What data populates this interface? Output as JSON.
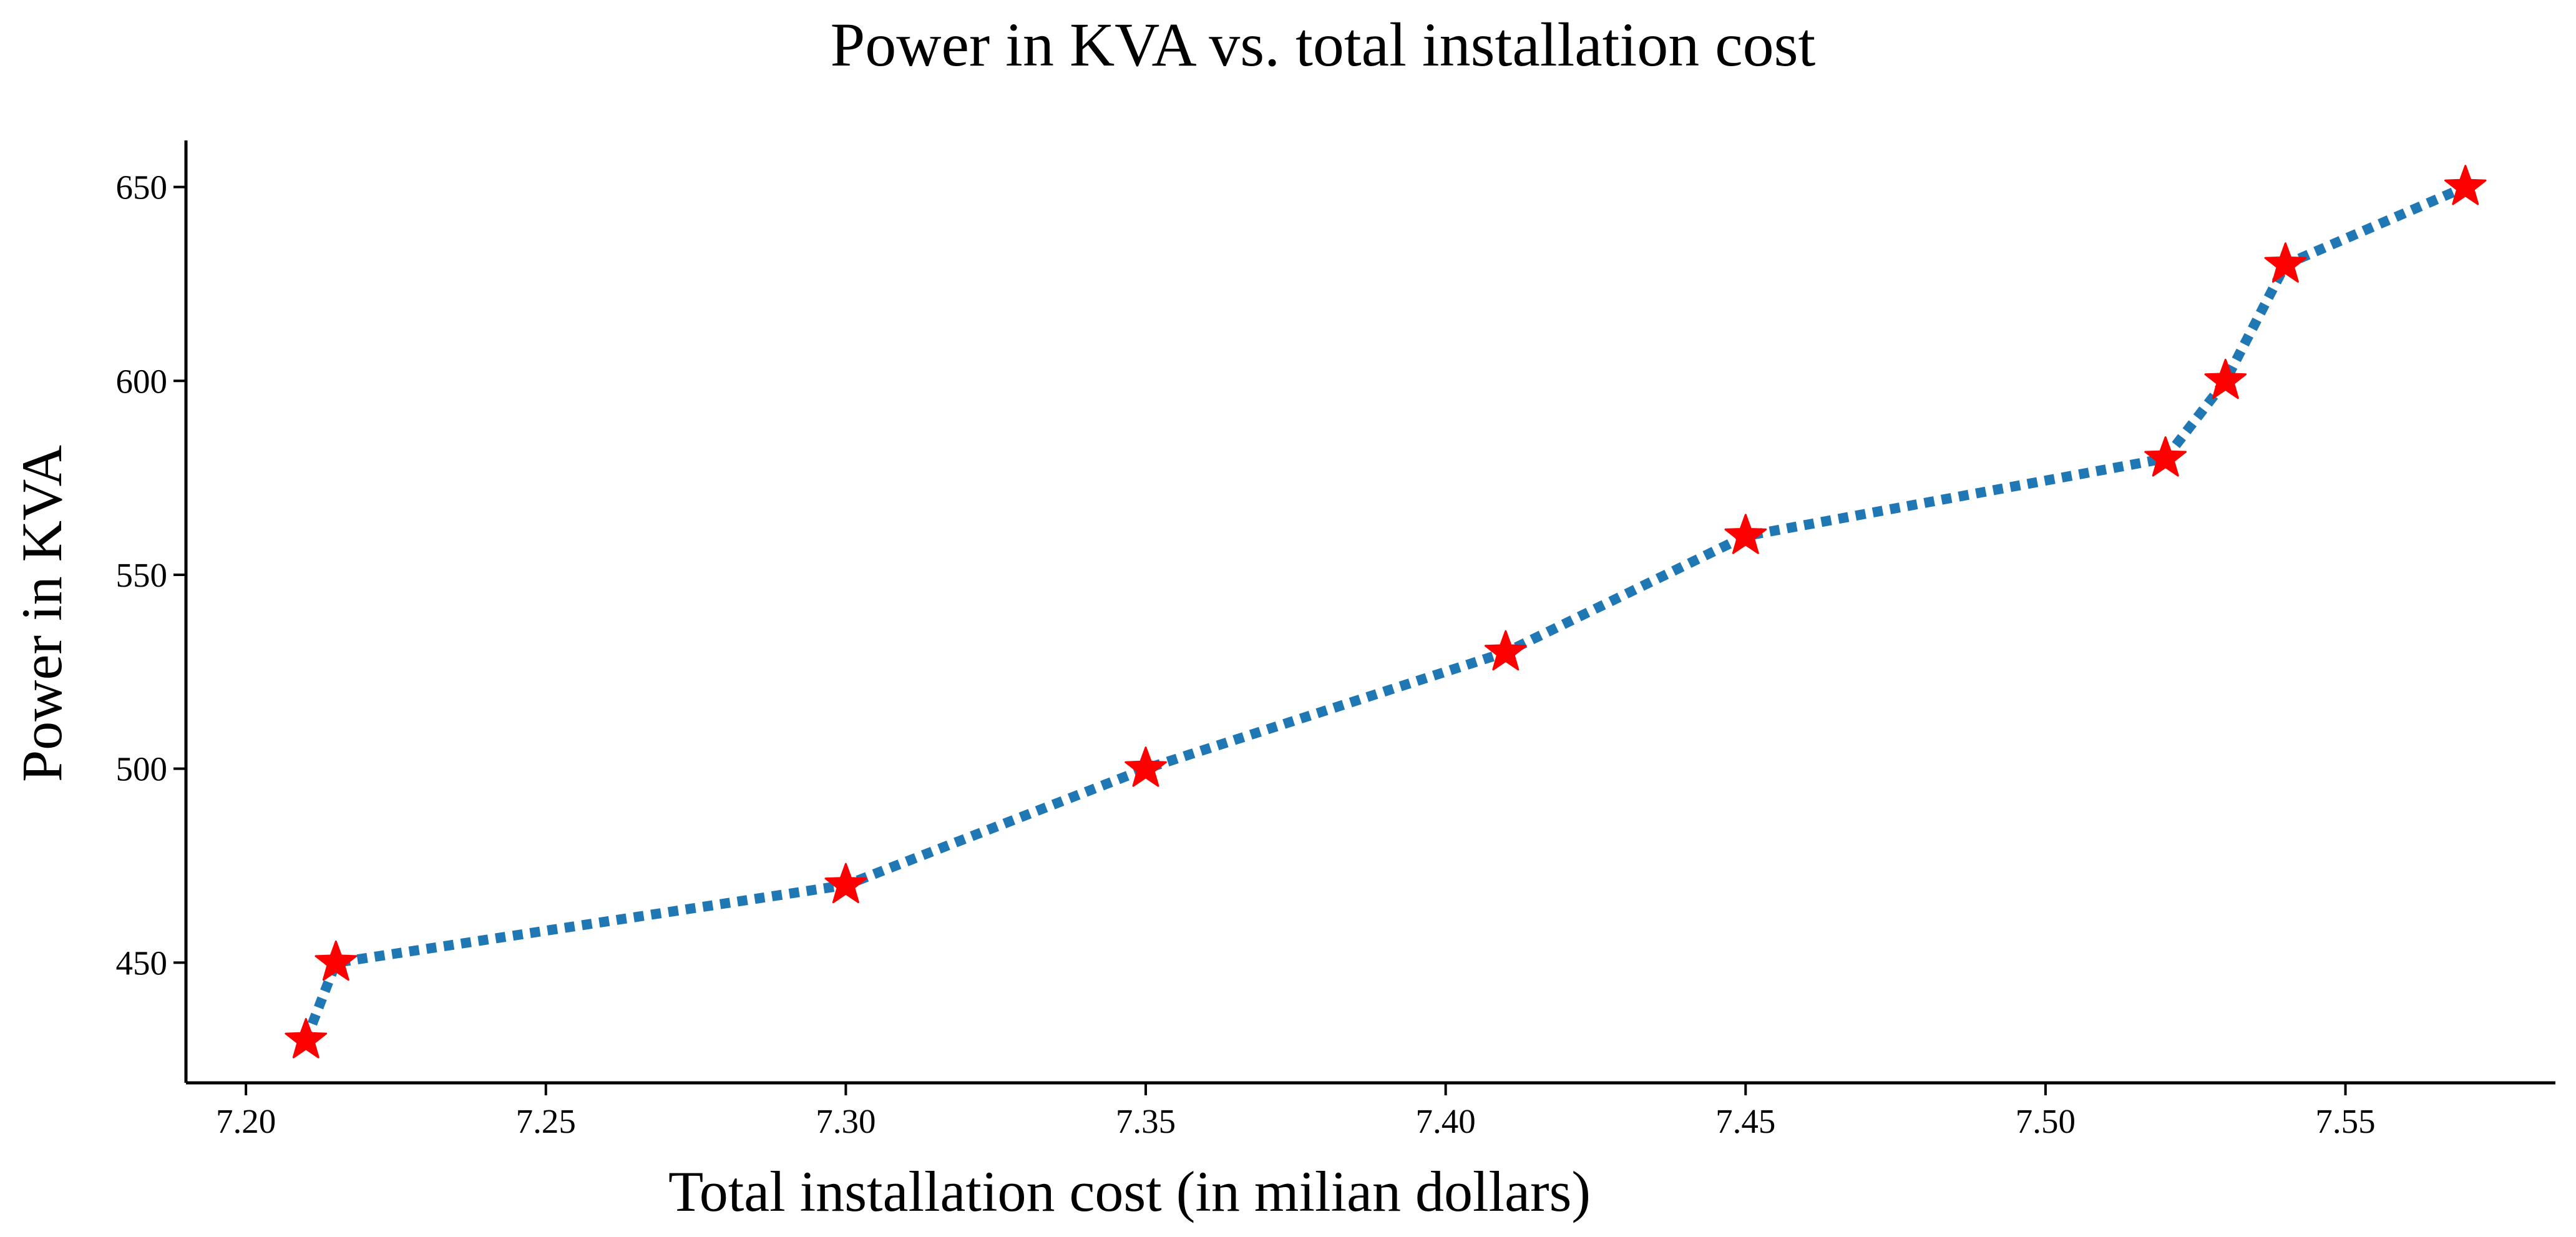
{
  "chart_data": {
    "type": "line",
    "title": "Power in KVA vs. total installation cost",
    "xlabel": "Total installation cost (in milian dollars)",
    "ylabel": "Power in KVA",
    "xlim": [
      7.19,
      7.585
    ],
    "ylim": [
      419,
      662
    ],
    "xticks": [
      7.2,
      7.25,
      7.3,
      7.35,
      7.4,
      7.45,
      7.5,
      7.55
    ],
    "xtick_labels": [
      "7.20",
      "7.25",
      "7.30",
      "7.35",
      "7.40",
      "7.45",
      "7.50",
      "7.55"
    ],
    "yticks": [
      450,
      500,
      550,
      600,
      650
    ],
    "ytick_labels": [
      "450",
      "500",
      "550",
      "600",
      "650"
    ],
    "grid": false,
    "series": [
      {
        "name": "Power in KVA",
        "line_color": "#1f77b4",
        "line_style": "dotted",
        "marker": "star",
        "marker_color": "#ff0000",
        "x": [
          7.21,
          7.215,
          7.3,
          7.35,
          7.41,
          7.45,
          7.52,
          7.53,
          7.54,
          7.57
        ],
        "y": [
          430,
          450,
          470,
          500,
          530,
          560,
          580,
          600,
          630,
          650
        ]
      }
    ]
  }
}
